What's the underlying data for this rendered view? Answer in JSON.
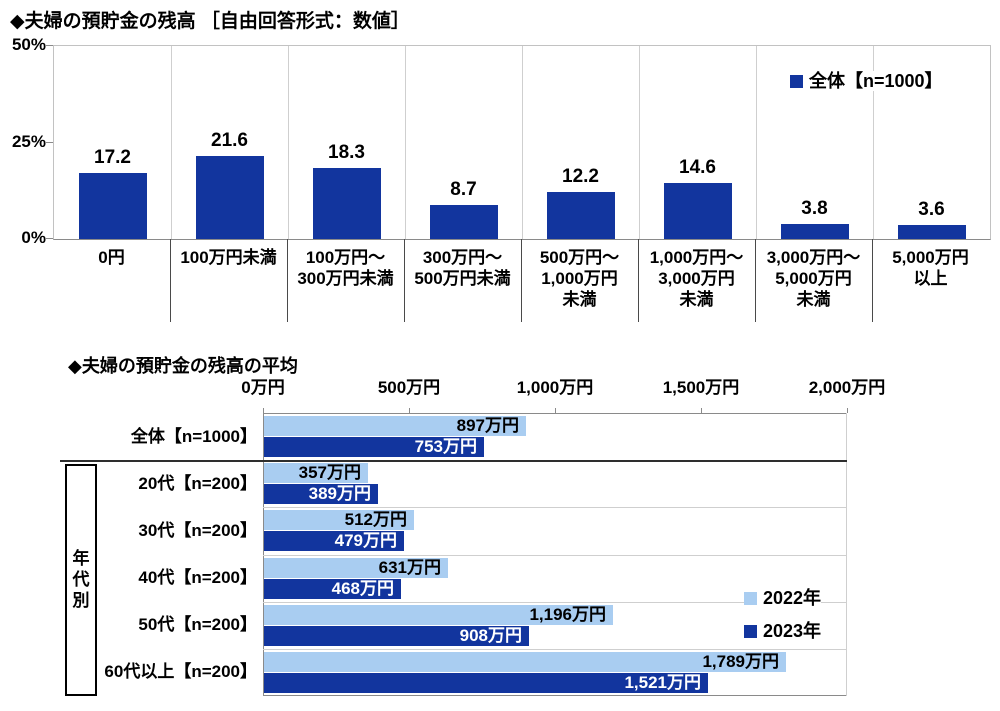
{
  "colors": {
    "dark_blue": "#12359E",
    "light_blue": "#A9CDF1",
    "grid_light": "#CFCFCF",
    "axis_gray": "#8a8a8a",
    "separator_dark": "#2e2e2e",
    "text": "#000000",
    "bar_label_on_dark": "#ffffff"
  },
  "chart_data": [
    {
      "type": "bar",
      "title": "◆夫婦の預貯金の残高 ［自由回答形式：数値］",
      "legend_label": "全体【n=1000】",
      "categories": [
        [
          "0円"
        ],
        [
          "100万円未満"
        ],
        [
          "100万円～",
          "300万円未満"
        ],
        [
          "300万円～",
          "500万円未満"
        ],
        [
          "500万円～",
          "1,000万円",
          "未満"
        ],
        [
          "1,000万円～",
          "3,000万円",
          "未満"
        ],
        [
          "3,000万円～",
          "5,000万円",
          "未満"
        ],
        [
          "5,000万円",
          "以上"
        ]
      ],
      "values": [
        17.2,
        21.6,
        18.3,
        8.7,
        12.2,
        14.6,
        3.8,
        3.6
      ],
      "unit": "%",
      "ylim": [
        0,
        50
      ],
      "y_ticks": [
        "0%",
        "25%",
        "50%"
      ],
      "grid": "vertical-category-lines",
      "legend_position": "top-right-inside"
    },
    {
      "type": "bar-horizontal",
      "title": "◆夫婦の預貯金の残高の平均",
      "categories": [
        "全体【n=1000】",
        "20代【n=200】",
        "30代【n=200】",
        "40代【n=200】",
        "50代【n=200】",
        "60代以上【n=200】"
      ],
      "group_label": "年代別",
      "group_label_rows": [
        1,
        5
      ],
      "series": [
        {
          "name": "2022年",
          "values": [
            897,
            357,
            512,
            631,
            1196,
            1789
          ],
          "labels": [
            "897万円",
            "357万円",
            "512万円",
            "631万円",
            "1,196万円",
            "1,789万円"
          ]
        },
        {
          "name": "2023年",
          "values": [
            753,
            389,
            479,
            468,
            908,
            1521
          ],
          "labels": [
            "753万円",
            "389万円",
            "479万円",
            "468万円",
            "908万円",
            "1,521万円"
          ]
        }
      ],
      "x_ticks": [
        "0万円",
        "500万円",
        "1,000万円",
        "1,500万円",
        "2,000万円"
      ],
      "x_tick_values": [
        0,
        500,
        1000,
        1500,
        2000
      ],
      "xlim": [
        0,
        2000
      ],
      "legend_position": "right-inside"
    }
  ]
}
